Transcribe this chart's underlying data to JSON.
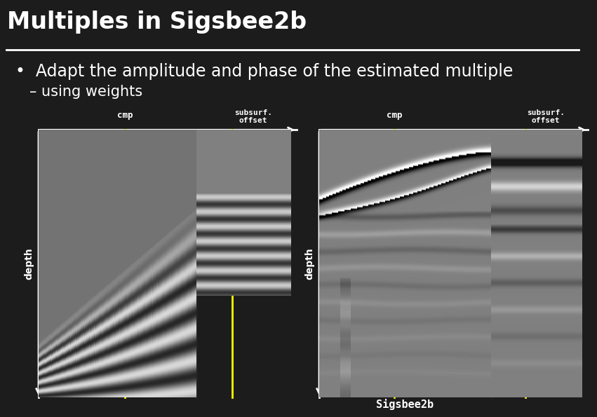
{
  "title": "Multiples in Sigsbee2b",
  "title_fontsize": 24,
  "title_color": "#ffffff",
  "title_bg_color": "#111111",
  "slide_bg_color": "#3d3d3d",
  "header_line_color": "#ffffff",
  "bullet1": "•  Adapt the amplitude and phase of the estimated multiple",
  "bullet1_fontsize": 17,
  "bullet2": "– using weights",
  "bullet2_fontsize": 15,
  "bullet_color": "#ffffff",
  "left_label_cmp": "cmp",
  "left_label_subsurf": "subsurf.\noffset",
  "right_label_cmp": "cmp",
  "right_label_subsurf": "subsurf.\noffset",
  "depth_label": "depth",
  "sigsbee_label": "Sigsbee2b",
  "yellow_line_color": "#ffff00",
  "panel_gray": "#787878",
  "panel_dark_gray": "#606060",
  "panel_right_gray": "#848484"
}
